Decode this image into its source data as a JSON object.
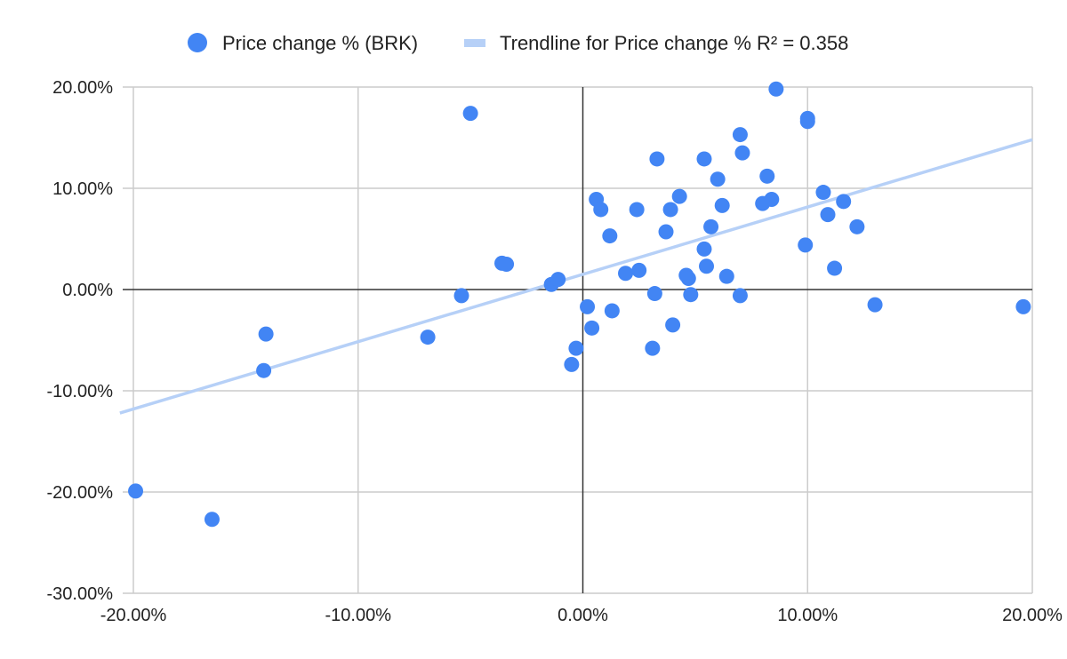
{
  "chart_data": {
    "type": "scatter",
    "series": [
      {
        "name": "Price change % (BRK)",
        "color": "#4285f4",
        "points": [
          [
            -19.9,
            -19.9
          ],
          [
            -16.5,
            -22.7
          ],
          [
            -14.2,
            -8.0
          ],
          [
            -14.1,
            -4.4
          ],
          [
            -6.9,
            -4.7
          ],
          [
            -5.0,
            17.4
          ],
          [
            -5.4,
            -0.6
          ],
          [
            -3.6,
            2.6
          ],
          [
            -3.4,
            2.5
          ],
          [
            -1.4,
            0.5
          ],
          [
            -1.1,
            1.0
          ],
          [
            -0.5,
            -7.4
          ],
          [
            -0.3,
            -5.8
          ],
          [
            0.2,
            -1.7
          ],
          [
            0.4,
            -3.8
          ],
          [
            0.6,
            8.9
          ],
          [
            0.8,
            7.9
          ],
          [
            1.2,
            5.3
          ],
          [
            1.3,
            -2.1
          ],
          [
            1.9,
            1.6
          ],
          [
            2.4,
            7.9
          ],
          [
            2.5,
            1.9
          ],
          [
            3.1,
            -5.8
          ],
          [
            3.2,
            -0.4
          ],
          [
            3.3,
            12.9
          ],
          [
            3.7,
            5.7
          ],
          [
            3.9,
            7.9
          ],
          [
            4.0,
            -3.5
          ],
          [
            4.3,
            9.2
          ],
          [
            4.6,
            1.4
          ],
          [
            4.7,
            1.1
          ],
          [
            4.8,
            -0.5
          ],
          [
            5.4,
            12.9
          ],
          [
            5.4,
            4.0
          ],
          [
            5.5,
            2.3
          ],
          [
            5.7,
            6.2
          ],
          [
            6.0,
            10.9
          ],
          [
            6.2,
            8.3
          ],
          [
            6.4,
            1.3
          ],
          [
            7.0,
            15.3
          ],
          [
            7.0,
            -0.6
          ],
          [
            7.1,
            13.5
          ],
          [
            8.0,
            8.5
          ],
          [
            8.2,
            11.2
          ],
          [
            8.4,
            8.9
          ],
          [
            8.6,
            19.8
          ],
          [
            9.9,
            4.4
          ],
          [
            10.0,
            16.9
          ],
          [
            10.0,
            16.6
          ],
          [
            10.7,
            9.6
          ],
          [
            10.9,
            7.4
          ],
          [
            11.2,
            2.1
          ],
          [
            11.6,
            8.7
          ],
          [
            12.2,
            6.2
          ],
          [
            13.0,
            -1.5
          ],
          [
            19.6,
            -1.7
          ]
        ]
      }
    ],
    "trendline": {
      "name": "Trendline for Price change % R² = 0.358",
      "color": "#b6d0f7",
      "endpoints": [
        [
          -20.6,
          -12.2
        ],
        [
          20.0,
          14.8
        ]
      ]
    },
    "x_ticks": [
      "-20.00%",
      "-10.00%",
      "0.00%",
      "10.00%",
      "20.00%"
    ],
    "y_ticks": [
      "20.00%",
      "10.00%",
      "0.00%",
      "-10.00%",
      "-20.00%",
      "-30.00%"
    ],
    "xlim": [
      -20,
      20
    ],
    "ylim": [
      -30,
      20
    ],
    "grid": true,
    "legend_position": "top-center",
    "title": "",
    "xlabel": "",
    "ylabel": ""
  }
}
